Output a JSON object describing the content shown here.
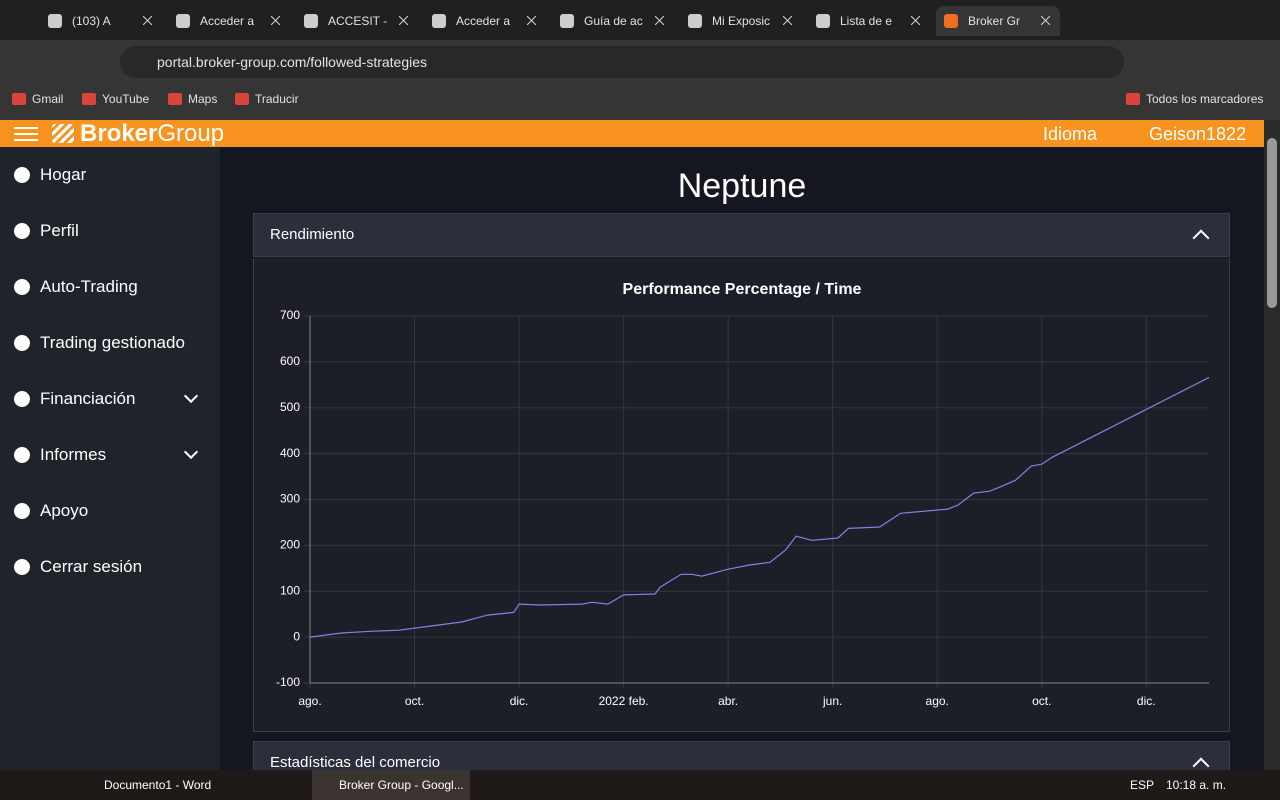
{
  "browser": {
    "tabs": [
      "(103) A",
      "Acceder a",
      "ACCESIT -",
      "Acceder a",
      "Guía de ac",
      "Mi Exposic",
      "Lista de e",
      "Broker Gr"
    ],
    "url": "portal.broker-group.com/followed-strategies",
    "bookmarks": [
      "Gmail",
      "YouTube",
      "Maps",
      "Traducir"
    ],
    "all_bookmarks": "Todos los marcadores"
  },
  "header": {
    "brand_a": "Broker",
    "brand_b": "Group",
    "language": "Idioma",
    "user": "Geison1822"
  },
  "sidebar": {
    "items": [
      {
        "label": "Hogar"
      },
      {
        "label": "Perfil"
      },
      {
        "label": "Auto-Trading"
      },
      {
        "label": "Trading gestionado"
      },
      {
        "label": "Financiación",
        "expandable": true
      },
      {
        "label": "Informes",
        "expandable": true
      },
      {
        "label": "Apoyo"
      },
      {
        "label": "Cerrar sesión"
      }
    ]
  },
  "page": {
    "title": "Neptune",
    "panels": [
      "Rendimiento",
      "Estadísticas del comercio"
    ]
  },
  "chart_data": {
    "type": "line",
    "title": "Performance Percentage / Time",
    "x": [
      0,
      0.6,
      1.2,
      1.7,
      2.3,
      2.9,
      3.4,
      3.9,
      4.0,
      4.4,
      5.2,
      5.4,
      5.7,
      6.0,
      6.6,
      6.7,
      7.1,
      7.3,
      7.5,
      8.0,
      8.4,
      8.8,
      9.1,
      9.3,
      9.6,
      10.1,
      10.3,
      10.9,
      11.3,
      12.2,
      12.4,
      12.7,
      13.0,
      13.2,
      13.5,
      13.8,
      14.0,
      14.2,
      17.2
    ],
    "values": [
      0,
      9,
      13,
      15,
      24,
      33,
      48,
      54,
      72,
      70,
      72,
      76,
      72,
      92,
      94,
      109,
      137,
      137,
      133,
      148,
      157,
      163,
      190,
      220,
      211,
      216,
      237,
      240,
      270,
      279,
      288,
      314,
      318,
      327,
      342,
      373,
      377,
      392,
      566
    ],
    "color": "#8c7ee0",
    "xlim": [
      0,
      17.2
    ],
    "xticks": [
      {
        "value": 0,
        "label": "ago."
      },
      {
        "value": 2,
        "label": "oct."
      },
      {
        "value": 4,
        "label": "dic."
      },
      {
        "value": 6,
        "label": "2022 feb."
      },
      {
        "value": 8,
        "label": "abr."
      },
      {
        "value": 10,
        "label": "jun."
      },
      {
        "value": 12,
        "label": "ago."
      },
      {
        "value": 14,
        "label": "oct."
      },
      {
        "value": 16,
        "label": "dic."
      }
    ],
    "ylim": [
      -100,
      700
    ],
    "yticks": [
      -100,
      0,
      100,
      200,
      300,
      400,
      500,
      600,
      700
    ],
    "grid": true
  },
  "taskbar": {
    "apps": [
      "Documento1 - Word",
      "Broker Group - Googl..."
    ],
    "language": "ESP",
    "time": "10:18 a. m."
  }
}
